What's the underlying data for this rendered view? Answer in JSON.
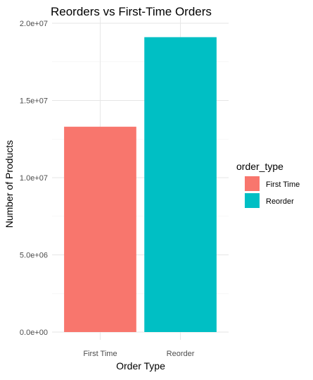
{
  "chart_data": {
    "type": "bar",
    "title": "Reorders vs First-Time Orders",
    "xlabel": "Order Type",
    "ylabel": "Number of Products",
    "categories": [
      "First Time",
      "Reorder"
    ],
    "values": [
      13300000,
      19100000
    ],
    "ylim": [
      0,
      20000000
    ],
    "yticks": [
      {
        "value": 0,
        "label": "0.0e+00"
      },
      {
        "value": 5000000,
        "label": "5.0e+06"
      },
      {
        "value": 10000000,
        "label": "1.0e+07"
      },
      {
        "value": 15000000,
        "label": "1.5e+07"
      },
      {
        "value": 20000000,
        "label": "2.0e+07"
      }
    ],
    "grid": true,
    "legend": {
      "title": "order_type",
      "placement": "right",
      "entries": [
        "First Time",
        "Reorder"
      ]
    },
    "colors": [
      "#f8766d",
      "#00bfc4"
    ]
  }
}
